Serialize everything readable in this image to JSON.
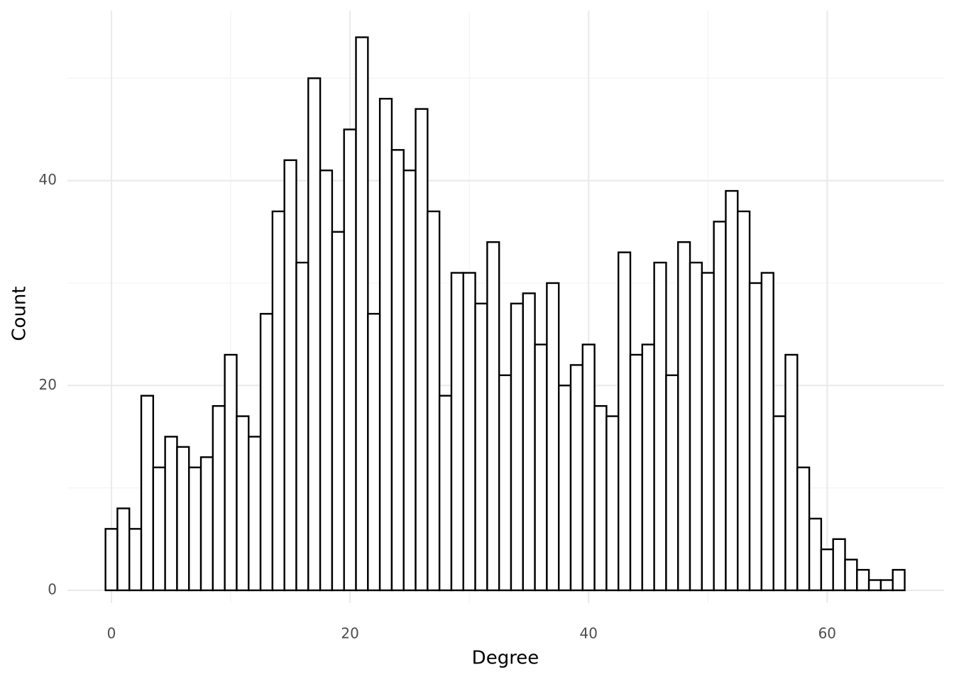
{
  "chart_data": {
    "type": "histogram",
    "xlabel": "Degree",
    "ylabel": "Count",
    "bins": [
      -0.5,
      0.5,
      1.5,
      2.5,
      3.5,
      4.5,
      5.5,
      6.5,
      7.5,
      8.5,
      9.5,
      10.5,
      11.5,
      12.5,
      13.5,
      14.5,
      15.5,
      16.5,
      17.5,
      18.5,
      19.5,
      20.5,
      21.5,
      22.5,
      23.5,
      24.5,
      25.5,
      26.5,
      27.5,
      28.5,
      29.5,
      30.5,
      31.5,
      32.5,
      33.5,
      34.5,
      35.5,
      36.5,
      37.5,
      38.5,
      39.5,
      40.5,
      41.5,
      42.5,
      43.5,
      44.5,
      45.5,
      46.5,
      47.5,
      48.5,
      49.5,
      50.5,
      51.5,
      52.5,
      53.5,
      54.5,
      55.5,
      56.5,
      57.5,
      58.5,
      59.5,
      60.5,
      61.5,
      62.5,
      63.5,
      64.5,
      65.5,
      66.5
    ],
    "counts": [
      6,
      8,
      6,
      19,
      12,
      15,
      14,
      12,
      13,
      18,
      23,
      17,
      15,
      27,
      37,
      42,
      32,
      50,
      41,
      35,
      45,
      54,
      27,
      48,
      43,
      41,
      47,
      37,
      19,
      31,
      31,
      28,
      34,
      21,
      28,
      29,
      24,
      30,
      20,
      22,
      24,
      18,
      17,
      33,
      23,
      24,
      32,
      21,
      34,
      32,
      31,
      36,
      39,
      37,
      30,
      31,
      17,
      23,
      12,
      7,
      4,
      5,
      3,
      2,
      1,
      1,
      2
    ],
    "fill": "#ffffff",
    "edge_color": "#000000",
    "xlim": [
      -3.69,
      69.8
    ],
    "ylim": [
      -1.25,
      56.6
    ],
    "xticks": [
      0,
      20,
      40,
      60
    ],
    "yticks": [
      0,
      20,
      40
    ],
    "xminor": [
      10,
      30,
      50
    ],
    "yminor": [
      10,
      30,
      50
    ],
    "grid": true
  }
}
